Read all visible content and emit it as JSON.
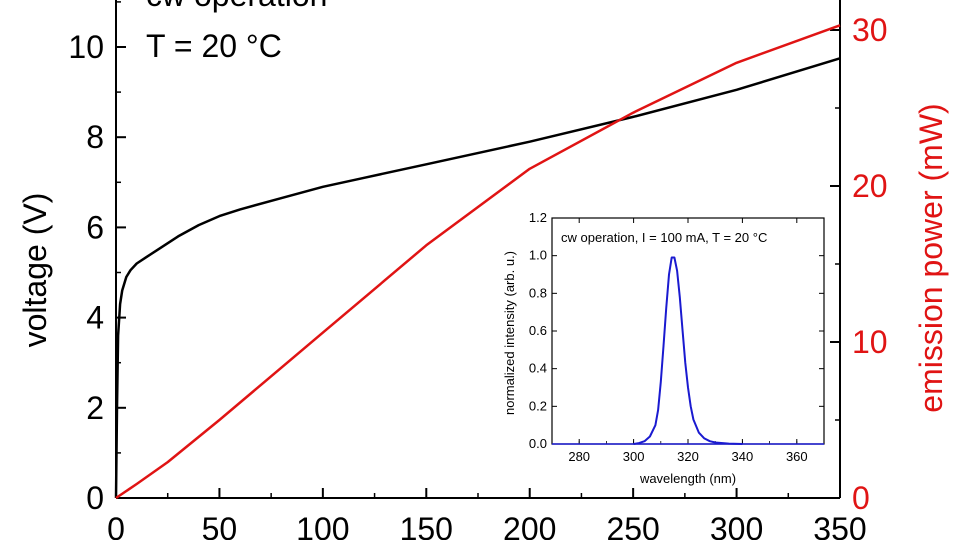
{
  "chart_data": [
    {
      "type": "line",
      "title_lines": [
        "cw operation",
        "T = 20 °C"
      ],
      "xlabel": "",
      "ylabel": "voltage (V)",
      "y2label": "emission power (mW)",
      "xlim": [
        0,
        350
      ],
      "ylim": [
        0,
        11
      ],
      "y2lim": [
        0,
        32
      ],
      "xticks": [
        0,
        50,
        100,
        150,
        200,
        250,
        300,
        350
      ],
      "yticks": [
        0,
        2,
        4,
        6,
        8,
        10
      ],
      "y2ticks": [
        0,
        10,
        20,
        30
      ],
      "series": [
        {
          "axis": "left",
          "color": "#000000",
          "x": [
            0,
            0.5,
            1,
            2,
            3,
            5,
            7,
            10,
            15,
            20,
            30,
            40,
            50,
            60,
            80,
            100,
            120,
            150,
            200,
            250,
            300,
            350
          ],
          "y": [
            0,
            2.0,
            3.6,
            4.3,
            4.6,
            4.9,
            5.05,
            5.2,
            5.35,
            5.5,
            5.8,
            6.05,
            6.25,
            6.4,
            6.65,
            6.9,
            7.1,
            7.4,
            7.9,
            8.45,
            9.05,
            9.75
          ]
        },
        {
          "axis": "right",
          "color": "#e01414",
          "x": [
            0,
            10,
            25,
            50,
            100,
            150,
            200,
            250,
            300,
            350
          ],
          "y": [
            0,
            0.9,
            2.3,
            5.0,
            10.6,
            16.2,
            21.1,
            24.7,
            27.9,
            30.3
          ]
        }
      ]
    },
    {
      "type": "line",
      "title": "cw operation, I = 100 mA, T = 20 °C",
      "xlabel": "wavelength (nm)",
      "ylabel": "normalized intensity (arb. u.)",
      "xlim": [
        270,
        370
      ],
      "ylim": [
        0,
        1.2
      ],
      "xticks": [
        280,
        300,
        320,
        340,
        360
      ],
      "yticks": [
        0.0,
        0.2,
        0.4,
        0.6,
        0.8,
        1.0,
        1.2
      ],
      "series": [
        {
          "color": "#1a1ad0",
          "x": [
            300,
            302,
            304,
            306,
            308,
            309,
            310,
            311,
            312,
            313,
            314,
            315,
            316,
            317,
            318,
            319,
            320,
            321,
            322,
            324,
            326,
            328,
            330,
            335,
            340
          ],
          "y": [
            0.0,
            0.005,
            0.015,
            0.04,
            0.1,
            0.18,
            0.33,
            0.52,
            0.72,
            0.9,
            0.99,
            0.99,
            0.92,
            0.78,
            0.6,
            0.43,
            0.3,
            0.2,
            0.13,
            0.06,
            0.03,
            0.015,
            0.008,
            0.002,
            0.0
          ]
        }
      ]
    }
  ]
}
